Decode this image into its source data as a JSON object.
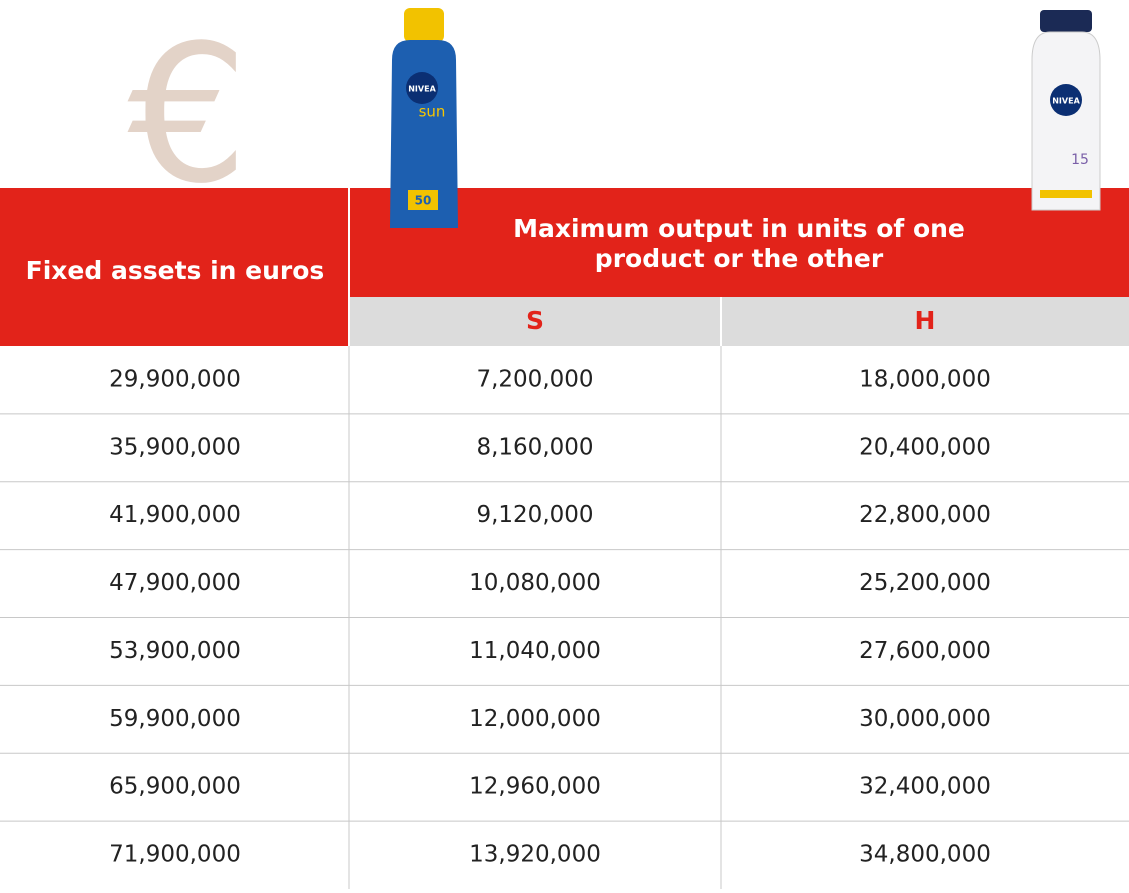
{
  "header": {
    "left": "Fixed assets in euros",
    "group": "Maximum output in units of one product or the other",
    "columns": [
      "S",
      "H"
    ]
  },
  "symbol": "€",
  "products": [
    {
      "brand": "NIVEA",
      "line": "sun",
      "spf": "50"
    },
    {
      "brand": "NIVEA",
      "spf": "15"
    }
  ],
  "table": {
    "rows": [
      [
        "29,900,000",
        "7,200,000",
        "18,000,000"
      ],
      [
        "35,900,000",
        "8,160,000",
        "20,400,000"
      ],
      [
        "41,900,000",
        "9,120,000",
        "22,800,000"
      ],
      [
        "47,900,000",
        "10,080,000",
        "25,200,000"
      ],
      [
        "53,900,000",
        "11,040,000",
        "27,600,000"
      ],
      [
        "59,900,000",
        "12,000,000",
        "30,000,000"
      ],
      [
        "65,900,000",
        "12,960,000",
        "32,400,000"
      ],
      [
        "71,900,000",
        "13,920,000",
        "34,800,000"
      ]
    ]
  }
}
